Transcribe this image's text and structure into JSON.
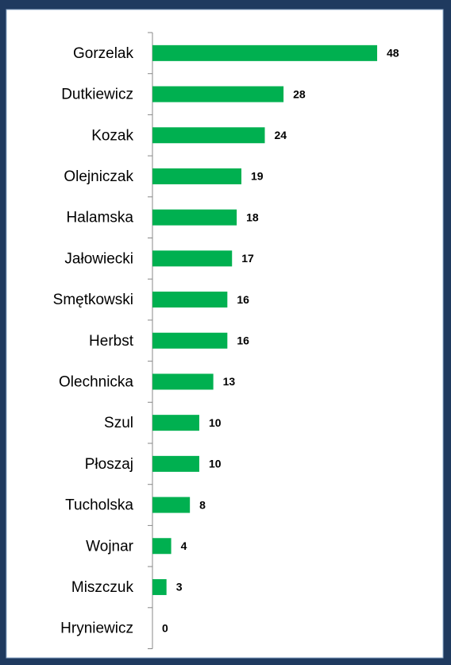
{
  "chart_data": {
    "type": "bar",
    "orientation": "horizontal",
    "categories": [
      "Gorzelak",
      "Dutkiewicz",
      "Kozak",
      "Olejniczak",
      "Halamska",
      "Jałowiecki",
      "Smętkowski",
      "Herbst",
      "Olechnicka",
      "Szul",
      "Płoszaj",
      "Tucholska",
      "Wojnar",
      "Miszczuk",
      "Hryniewicz"
    ],
    "values": [
      48,
      28,
      24,
      19,
      18,
      17,
      16,
      16,
      13,
      10,
      10,
      8,
      4,
      3,
      0
    ],
    "color": "#00b050"
  }
}
